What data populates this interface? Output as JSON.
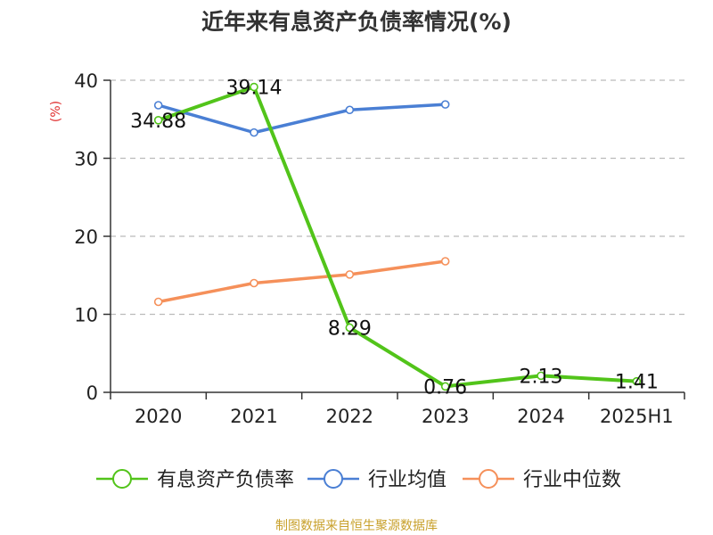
{
  "chart_data": {
    "type": "line",
    "title": "近年来有息资产负债率情况(%)",
    "ylabel": "(%)",
    "xlabel": "",
    "categories": [
      "2020",
      "2021",
      "2022",
      "2023",
      "2024",
      "2025H1"
    ],
    "ylim": [
      0,
      40
    ],
    "yticks": [
      0,
      10,
      20,
      30,
      40
    ],
    "grid": true,
    "legend_position": "bottom",
    "series": [
      {
        "name": "有息资产负债率",
        "color": "#52c41a",
        "values": [
          34.88,
          39.14,
          8.29,
          0.76,
          2.13,
          1.41
        ],
        "labels": [
          "34.88",
          "39.14",
          "8.29",
          "0.76",
          "2.13",
          "1.41"
        ]
      },
      {
        "name": "行业均值",
        "color": "#4a7fd4",
        "values": [
          36.8,
          33.3,
          36.2,
          36.9,
          null,
          null
        ]
      },
      {
        "name": "行业中位数",
        "color": "#f5905a",
        "values": [
          11.6,
          14.0,
          15.1,
          16.8,
          null,
          null
        ]
      }
    ]
  },
  "source": "制图数据来自恒生聚源数据库",
  "colors": {
    "title": "#333333",
    "ylabel": "#e03030",
    "axis": "#333333",
    "grid": "#bbbbbb",
    "source": "#c8a02a"
  }
}
